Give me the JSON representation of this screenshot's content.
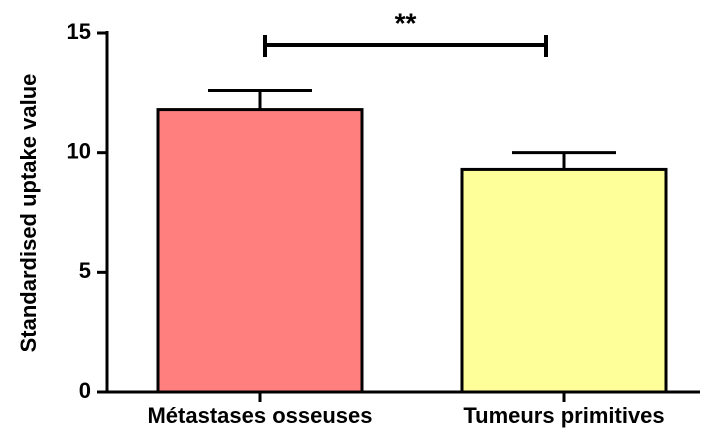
{
  "chart_data": {
    "type": "bar",
    "y_label": "Standardised uptake value",
    "categories": [
      "Métastases osseuses",
      "Tumeurs primitives"
    ],
    "values": [
      11.8,
      9.3
    ],
    "errors": [
      0.8,
      0.7
    ],
    "colors": [
      "#ff7f7f",
      "#ffff99"
    ],
    "ylim": [
      0,
      15
    ],
    "yticks": [
      0,
      5,
      10,
      15
    ],
    "grid": false,
    "annotation": "**"
  }
}
